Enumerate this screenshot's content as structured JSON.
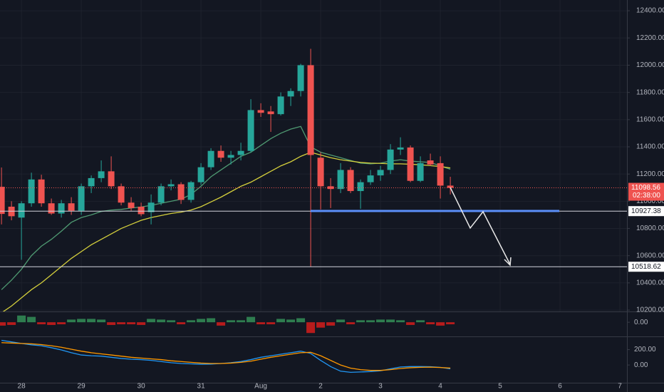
{
  "chart_data": [
    {
      "type": "candlestick",
      "x": [
        0,
        1,
        2,
        3,
        4,
        5,
        6,
        7,
        8,
        9,
        10,
        11,
        12,
        13,
        14,
        15,
        16,
        17,
        18,
        19,
        20,
        21,
        22,
        23,
        24,
        25,
        26,
        27,
        28,
        29,
        30,
        31,
        32,
        33,
        34,
        35,
        36,
        37,
        38,
        39,
        40,
        41,
        42,
        43,
        44,
        45
      ],
      "open": [
        11106,
        10960,
        10880,
        10985,
        11160,
        10985,
        10910,
        10985,
        10930,
        11110,
        11170,
        11220,
        11110,
        10990,
        10960,
        10920,
        10990,
        11110,
        11125,
        11010,
        11140,
        11250,
        11370,
        11320,
        11340,
        11370,
        11670,
        11660,
        11640,
        11770,
        11810,
        12000,
        11320,
        11110,
        11090,
        11230,
        11075,
        11140,
        11190,
        11230,
        11380,
        11395,
        11150,
        11300,
        11280,
        11115
      ],
      "high": [
        11248,
        11000,
        11000,
        11210,
        11195,
        11020,
        11010,
        11030,
        11130,
        11190,
        11300,
        11330,
        11130,
        11030,
        10990,
        11050,
        11130,
        11160,
        11140,
        11150,
        11280,
        11390,
        11410,
        11370,
        11430,
        11750,
        11720,
        11700,
        11800,
        11830,
        12010,
        12120,
        11360,
        11170,
        11280,
        11250,
        11160,
        11230,
        11260,
        11420,
        11470,
        11410,
        11330,
        11350,
        11330,
        11180
      ],
      "low": [
        10830,
        10860,
        10570,
        10960,
        10960,
        10900,
        10880,
        10900,
        10900,
        11060,
        11140,
        11090,
        10970,
        10930,
        10890,
        10830,
        10970,
        11080,
        10980,
        10990,
        11120,
        11230,
        11290,
        11270,
        11300,
        11360,
        11620,
        11510,
        11630,
        11700,
        11770,
        10520,
        10940,
        10950,
        11060,
        11060,
        10945,
        11120,
        11150,
        11200,
        11340,
        11140,
        11140,
        11260,
        11020,
        11050
      ],
      "close": [
        10907,
        10890,
        10985,
        11160,
        10985,
        10910,
        10985,
        10930,
        11110,
        11170,
        11220,
        11110,
        10990,
        10950,
        10905,
        10990,
        11110,
        11125,
        11010,
        11140,
        11250,
        11370,
        11320,
        11340,
        11370,
        11670,
        11650,
        11640,
        11770,
        11810,
        12000,
        11340,
        11110,
        11090,
        11230,
        11075,
        11140,
        11190,
        11230,
        11380,
        11395,
        11150,
        11280,
        11270,
        11115,
        11098.56
      ],
      "up_color": "#26a69a",
      "down_color": "#ef5350",
      "series": [
        {
          "color": "#4f9a72",
          "values": [
            10350,
            10420,
            10500,
            10600,
            10670,
            10720,
            10780,
            10845,
            10880,
            10900,
            10925,
            10935,
            10940,
            10950,
            10958,
            10970,
            10985,
            11000,
            11015,
            11050,
            11110,
            11180,
            11230,
            11280,
            11330,
            11360,
            11410,
            11460,
            11500,
            11530,
            11550,
            11400,
            11360,
            11340,
            11320,
            11300,
            11280,
            11275,
            11280,
            11295,
            11305,
            11295,
            11290,
            11285,
            11260,
            11235
          ]
        },
        {
          "color": "#d4cf3c",
          "values": [
            10180,
            10230,
            10290,
            10350,
            10400,
            10460,
            10520,
            10580,
            10630,
            10680,
            10720,
            10760,
            10800,
            10830,
            10860,
            10880,
            10895,
            10910,
            10920,
            10935,
            10960,
            10995,
            11030,
            11070,
            11110,
            11140,
            11180,
            11220,
            11260,
            11290,
            11330,
            11360,
            11340,
            11320,
            11305,
            11295,
            11285,
            11280,
            11278,
            11275,
            11275,
            11272,
            11268,
            11262,
            11255,
            11245
          ]
        }
      ],
      "xlim": [
        -0.15,
        62.71
      ],
      "xticks": [
        {
          "value": 2,
          "label": "28"
        },
        {
          "value": 8,
          "label": "29"
        },
        {
          "value": 14,
          "label": "30"
        },
        {
          "value": 20,
          "label": "31"
        },
        {
          "value": 26,
          "label": "Aug"
        },
        {
          "value": 32,
          "label": "2"
        },
        {
          "value": 38,
          "label": "3"
        },
        {
          "value": 44,
          "label": "4"
        },
        {
          "value": 50,
          "label": "5"
        },
        {
          "value": 56,
          "label": "6"
        },
        {
          "value": 62,
          "label": "7"
        }
      ],
      "ylim": [
        10190,
        12479
      ],
      "yticks": [
        {
          "value": 10200,
          "label": "10200.00"
        },
        {
          "value": 10400,
          "label": "10400.00"
        },
        {
          "value": 10600,
          "label": "10600.00"
        },
        {
          "value": 10800,
          "label": "10800.00"
        },
        {
          "value": 11000,
          "label": "11000.00"
        },
        {
          "value": 11200,
          "label": "11200.00"
        },
        {
          "value": 11400,
          "label": "11400.00"
        },
        {
          "value": 11600,
          "label": "11600.00"
        },
        {
          "value": 11800,
          "label": "11800.00"
        },
        {
          "value": 12000,
          "label": "12000.00"
        },
        {
          "value": 12200,
          "label": "12200.00"
        },
        {
          "value": 12400,
          "label": "12400.00"
        }
      ],
      "grid": true,
      "last_price": 11098.56,
      "countdown": "02:38:00",
      "levels": [
        10927.38,
        10518.62
      ]
    },
    {
      "type": "bar",
      "values": [
        -5,
        -4,
        10,
        8,
        -3,
        -4,
        -3,
        4,
        5,
        5,
        4,
        -4,
        -3,
        -3,
        -4,
        5,
        4,
        3,
        -3,
        3,
        5,
        6,
        -5,
        3,
        3,
        8,
        -3,
        -3,
        5,
        4,
        6,
        -16,
        -8,
        -5,
        4,
        -3,
        3,
        3,
        4,
        4,
        3,
        -4,
        3,
        -3,
        -5,
        -3
      ],
      "up_color": "#2e7d4f",
      "down_color": "#b71c1c",
      "ylim": [
        -20,
        15
      ],
      "yticks": [
        {
          "value": 0,
          "label": "0.00"
        }
      ]
    },
    {
      "type": "line",
      "series": [
        {
          "color": "#2196f3",
          "values": [
            320,
            300,
            280,
            262,
            250,
            225,
            195,
            160,
            130,
            120,
            115,
            100,
            85,
            75,
            70,
            60,
            45,
            30,
            20,
            15,
            10,
            12,
            20,
            30,
            45,
            70,
            100,
            120,
            140,
            160,
            180,
            150,
            60,
            -20,
            -80,
            -95,
            -90,
            -85,
            -75,
            -50,
            -25,
            -20,
            -20,
            -22,
            -30,
            -50
          ]
        },
        {
          "color": "#ff9800",
          "values": [
            290,
            285,
            280,
            275,
            265,
            250,
            230,
            205,
            180,
            160,
            145,
            130,
            115,
            100,
            90,
            80,
            70,
            55,
            45,
            35,
            25,
            20,
            20,
            25,
            35,
            50,
            75,
            100,
            120,
            140,
            160,
            165,
            120,
            60,
            0,
            -40,
            -60,
            -70,
            -70,
            -60,
            -45,
            -35,
            -30,
            -28,
            -32,
            -40
          ]
        }
      ],
      "ylim": [
        -230,
        362
      ],
      "yticks": [
        {
          "value": 0,
          "label": "0.00"
        },
        {
          "value": 200,
          "label": "200.00"
        }
      ]
    }
  ]
}
